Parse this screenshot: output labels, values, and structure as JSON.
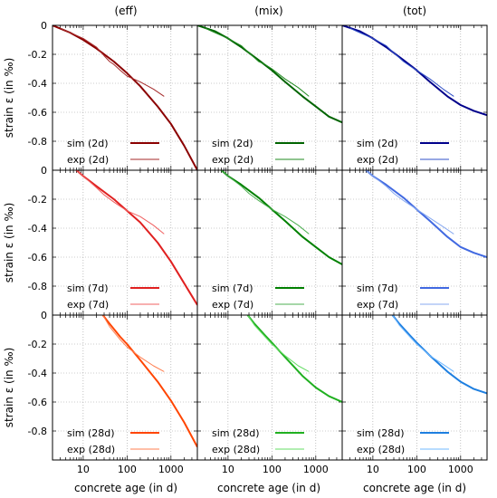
{
  "figure": {
    "column_titles": [
      "(eff)",
      "(mix)",
      "(tot)"
    ],
    "ylabel": "strain ε (in ‰)",
    "xlabel": "concrete age (in d)"
  },
  "chart_data": {
    "type": "line",
    "grid": true,
    "xscale": "log",
    "xlim": [
      2,
      4000
    ],
    "ylim": [
      -1.0,
      0
    ],
    "x_ticks": [
      10,
      100,
      1000
    ],
    "x_tick_labels": [
      "10",
      "100",
      "1000"
    ],
    "y_ticks": [
      0,
      -0.2,
      -0.4,
      -0.6,
      -0.8
    ],
    "y_tick_labels": [
      "0",
      "-0.2",
      "-0.4",
      "-0.6",
      "-0.8"
    ],
    "y_ticks_last_row": [
      0,
      -0.2,
      -0.4,
      -0.6,
      -0.8
    ],
    "legend_position": "bottom-left",
    "panels": [
      {
        "row": 0,
        "col": 0,
        "series": [
          {
            "name": "sim (2d)",
            "color": "#8b0000",
            "x": [
              2,
              5,
              10,
              20,
              50,
              100,
              200,
              500,
              1000,
              2000,
              4000
            ],
            "y": [
              0,
              -0.05,
              -0.1,
              -0.16,
              -0.25,
              -0.33,
              -0.42,
              -0.56,
              -0.68,
              -0.83,
              -1.0
            ]
          },
          {
            "name": "exp (2d)",
            "color": "#a52a2a",
            "x": [
              3,
              5,
              10,
              20,
              30,
              40,
              50,
              70,
              100,
              200,
              400,
              700
            ],
            "y": [
              -0.02,
              -0.05,
              -0.09,
              -0.15,
              -0.21,
              -0.25,
              -0.27,
              -0.31,
              -0.35,
              -0.39,
              -0.44,
              -0.49
            ]
          }
        ]
      },
      {
        "row": 0,
        "col": 1,
        "series": [
          {
            "name": "sim (2d)",
            "color": "#006400",
            "x": [
              2,
              5,
              10,
              20,
              50,
              100,
              200,
              500,
              1000,
              2000,
              4000
            ],
            "y": [
              0,
              -0.04,
              -0.09,
              -0.15,
              -0.24,
              -0.31,
              -0.39,
              -0.49,
              -0.56,
              -0.63,
              -0.67
            ]
          },
          {
            "name": "exp (2d)",
            "color": "#228b22",
            "x": [
              3,
              5,
              10,
              20,
              30,
              50,
              70,
              100,
              200,
              400,
              700
            ],
            "y": [
              -0.02,
              -0.05,
              -0.09,
              -0.14,
              -0.19,
              -0.25,
              -0.27,
              -0.3,
              -0.37,
              -0.43,
              -0.49
            ]
          }
        ]
      },
      {
        "row": 0,
        "col": 2,
        "series": [
          {
            "name": "sim (2d)",
            "color": "#00008b",
            "x": [
              2,
              5,
              10,
              20,
              50,
              100,
              200,
              500,
              1000,
              2000,
              4000
            ],
            "y": [
              0,
              -0.04,
              -0.09,
              -0.15,
              -0.24,
              -0.31,
              -0.39,
              -0.49,
              -0.55,
              -0.59,
              -0.62
            ]
          },
          {
            "name": "exp (2d)",
            "color": "#3050c8",
            "x": [
              3,
              5,
              10,
              20,
              30,
              50,
              70,
              100,
              200,
              400,
              700
            ],
            "y": [
              -0.02,
              -0.05,
              -0.09,
              -0.14,
              -0.19,
              -0.25,
              -0.28,
              -0.31,
              -0.37,
              -0.44,
              -0.49
            ]
          }
        ]
      },
      {
        "row": 1,
        "col": 0,
        "series": [
          {
            "name": "sim (7d)",
            "color": "#e02020",
            "x": [
              7,
              10,
              20,
              50,
              100,
              200,
              500,
              1000,
              2000,
              4000
            ],
            "y": [
              0,
              -0.04,
              -0.11,
              -0.2,
              -0.28,
              -0.36,
              -0.5,
              -0.63,
              -0.78,
              -0.93
            ]
          },
          {
            "name": "exp (7d)",
            "color": "#f06060",
            "x": [
              7,
              10,
              20,
              30,
              50,
              100,
              200,
              400,
              700
            ],
            "y": [
              0,
              -0.04,
              -0.12,
              -0.17,
              -0.22,
              -0.28,
              -0.32,
              -0.38,
              -0.44
            ]
          }
        ]
      },
      {
        "row": 1,
        "col": 1,
        "series": [
          {
            "name": "sim (7d)",
            "color": "#008000",
            "x": [
              7,
              10,
              20,
              50,
              100,
              200,
              500,
              1000,
              2000,
              4000
            ],
            "y": [
              0,
              -0.04,
              -0.1,
              -0.19,
              -0.27,
              -0.35,
              -0.46,
              -0.53,
              -0.6,
              -0.65
            ]
          },
          {
            "name": "exp (7d)",
            "color": "#4caf50",
            "x": [
              7,
              10,
              20,
              30,
              50,
              100,
              200,
              400,
              700
            ],
            "y": [
              0,
              -0.04,
              -0.11,
              -0.16,
              -0.21,
              -0.27,
              -0.32,
              -0.38,
              -0.44
            ]
          }
        ]
      },
      {
        "row": 1,
        "col": 2,
        "series": [
          {
            "name": "sim (7d)",
            "color": "#4169e1",
            "x": [
              7,
              10,
              20,
              50,
              100,
              200,
              500,
              1000,
              2000,
              4000
            ],
            "y": [
              0,
              -0.04,
              -0.1,
              -0.19,
              -0.27,
              -0.35,
              -0.46,
              -0.53,
              -0.57,
              -0.6
            ]
          },
          {
            "name": "exp (7d)",
            "color": "#87a9f0",
            "x": [
              7,
              10,
              20,
              30,
              50,
              100,
              200,
              400,
              700
            ],
            "y": [
              0,
              -0.04,
              -0.11,
              -0.16,
              -0.21,
              -0.27,
              -0.33,
              -0.39,
              -0.44
            ]
          }
        ]
      },
      {
        "row": 2,
        "col": 0,
        "series": [
          {
            "name": "sim (28d)",
            "color": "#ff4500",
            "x": [
              28,
              40,
              70,
              100,
              200,
              500,
              1000,
              2000,
              4000
            ],
            "y": [
              0,
              -0.06,
              -0.15,
              -0.2,
              -0.31,
              -0.46,
              -0.59,
              -0.74,
              -0.91
            ]
          },
          {
            "name": "exp (28d)",
            "color": "#ff7f50",
            "x": [
              28,
              40,
              70,
              100,
              200,
              400,
              700
            ],
            "y": [
              0,
              -0.08,
              -0.17,
              -0.22,
              -0.29,
              -0.35,
              -0.39
            ]
          }
        ]
      },
      {
        "row": 2,
        "col": 1,
        "series": [
          {
            "name": "sim (28d)",
            "color": "#20b020",
            "x": [
              28,
              40,
              70,
              100,
              200,
              500,
              1000,
              2000,
              4000
            ],
            "y": [
              0,
              -0.06,
              -0.14,
              -0.19,
              -0.29,
              -0.42,
              -0.5,
              -0.56,
              -0.6
            ]
          },
          {
            "name": "exp (28d)",
            "color": "#66dd66",
            "x": [
              28,
              40,
              70,
              100,
              200,
              400,
              700
            ],
            "y": [
              0,
              -0.07,
              -0.15,
              -0.2,
              -0.28,
              -0.35,
              -0.39
            ]
          }
        ]
      },
      {
        "row": 2,
        "col": 2,
        "series": [
          {
            "name": "sim (28d)",
            "color": "#1e7fe0",
            "x": [
              28,
              40,
              70,
              100,
              200,
              500,
              1000,
              2000,
              4000
            ],
            "y": [
              0,
              -0.06,
              -0.14,
              -0.19,
              -0.28,
              -0.39,
              -0.46,
              -0.51,
              -0.54
            ]
          },
          {
            "name": "exp (28d)",
            "color": "#70b8ff",
            "x": [
              28,
              40,
              70,
              100,
              200,
              400,
              700
            ],
            "y": [
              0,
              -0.07,
              -0.15,
              -0.2,
              -0.28,
              -0.34,
              -0.39
            ]
          }
        ]
      }
    ]
  }
}
